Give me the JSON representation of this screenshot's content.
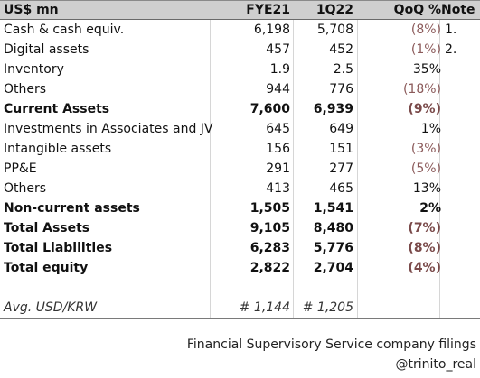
{
  "header": {
    "label": "US$ mn",
    "col1": "FYE21",
    "col2": "1Q22",
    "col3": "QoQ %",
    "col4": "Note"
  },
  "rows": [
    {
      "label": "Cash & cash equiv.",
      "fye21": "6,198",
      "q122": "5,708",
      "qoq": "(8%)",
      "note": "1."
    },
    {
      "label": "Digital assets",
      "fye21": "457",
      "q122": "452",
      "qoq": "(1%)",
      "note": "2."
    },
    {
      "label": "Inventory",
      "fye21": "1.9",
      "q122": "2.5",
      "qoq": "35%",
      "note": ""
    },
    {
      "label": "Others",
      "fye21": "944",
      "q122": "776",
      "qoq": "(18%)",
      "note": ""
    },
    {
      "label": "Current Assets",
      "fye21": "7,600",
      "q122": "6,939",
      "qoq": "(9%)",
      "note": ""
    },
    {
      "label": "Investments in Associates and JV",
      "fye21": "645",
      "q122": "649",
      "qoq": "1%",
      "note": ""
    },
    {
      "label": "Intangible assets",
      "fye21": "156",
      "q122": "151",
      "qoq": "(3%)",
      "note": ""
    },
    {
      "label": "PP&E",
      "fye21": "291",
      "q122": "277",
      "qoq": "(5%)",
      "note": ""
    },
    {
      "label": "Others",
      "fye21": "413",
      "q122": "465",
      "qoq": "13%",
      "note": ""
    },
    {
      "label": "Non-current assets",
      "fye21": "1,505",
      "q122": "1,541",
      "qoq": "2%",
      "note": ""
    },
    {
      "label": "Total Assets",
      "fye21": "9,105",
      "q122": "8,480",
      "qoq": "(7%)",
      "note": ""
    },
    {
      "label": "Total Liabilities",
      "fye21": "6,283",
      "q122": "5,776",
      "qoq": "(8%)",
      "note": ""
    },
    {
      "label": "Total equity",
      "fye21": "2,822",
      "q122": "2,704",
      "qoq": "(4%)",
      "note": ""
    }
  ],
  "fx": {
    "label": "Avg. USD/KRW",
    "fye21": "#  1,144",
    "q122": "#  1,205"
  },
  "footer": {
    "source": "Financial Supervisory Service company filings",
    "handle": "@trinito_real"
  },
  "colors": {
    "header_bg": "#cfcfcf",
    "negative": "#8b5a5a",
    "text": "#111111"
  }
}
